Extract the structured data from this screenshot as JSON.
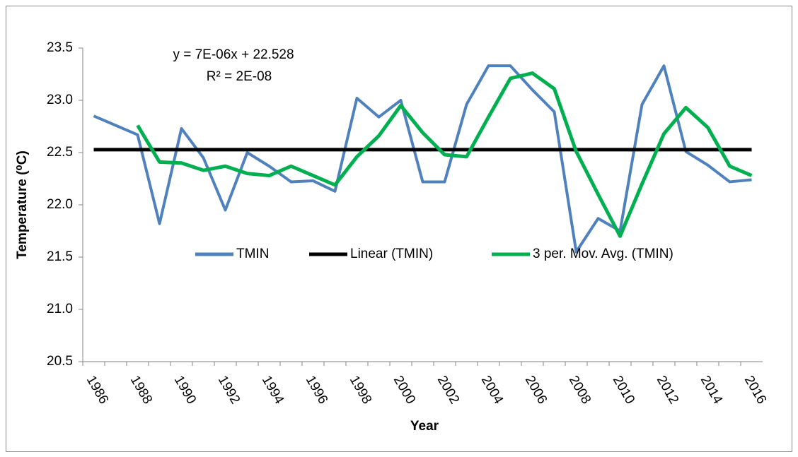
{
  "chart_data": {
    "type": "line",
    "x_label": "Year",
    "y_label": "Temperature (⁰C)",
    "annotations": [
      "y = 7E-06x + 22.528",
      "R² = 2E-08"
    ],
    "categories": [
      "1986",
      null,
      "1988",
      null,
      "1990",
      null,
      "1992",
      null,
      "1994",
      null,
      "1996",
      null,
      "1998",
      null,
      "2000",
      null,
      "2002",
      null,
      "2004",
      null,
      "2006",
      null,
      "2008",
      null,
      "2010",
      null,
      "2012",
      null,
      "2014",
      null,
      "2016"
    ],
    "series": [
      {
        "name": "TMIN",
        "color": "#4f81bd",
        "values": [
          22.85,
          22.76,
          22.67,
          21.82,
          22.73,
          22.45,
          21.95,
          22.5,
          22.37,
          22.22,
          22.23,
          22.13,
          23.02,
          22.84,
          23.0,
          22.22,
          22.22,
          22.96,
          23.33,
          23.33,
          23.1,
          22.89,
          21.55,
          21.87,
          21.75,
          22.96,
          23.33,
          22.51,
          22.38,
          22.22,
          22.24
        ]
      },
      {
        "name": "Linear (TMIN)",
        "color": "#000000",
        "values": [
          22.528,
          22.528,
          22.528,
          22.528,
          22.528,
          22.528,
          22.528,
          22.528,
          22.528,
          22.528,
          22.528,
          22.528,
          22.528,
          22.528,
          22.528,
          22.528,
          22.528,
          22.528,
          22.528,
          22.528,
          22.528,
          22.528,
          22.528,
          22.528,
          22.528,
          22.528,
          22.528,
          22.528,
          22.528,
          22.528,
          22.528
        ]
      },
      {
        "name": "3 per. Mov. Avg. (TMIN)",
        "color": "#00b050",
        "values": [
          null,
          null,
          22.76,
          22.41,
          22.4,
          22.33,
          22.37,
          22.3,
          22.28,
          22.37,
          22.28,
          22.19,
          22.46,
          22.66,
          22.95,
          22.69,
          22.48,
          22.46,
          22.84,
          23.21,
          23.26,
          23.11,
          22.51,
          22.1,
          21.7,
          22.2,
          22.68,
          22.93,
          22.74,
          22.37,
          22.28
        ]
      }
    ],
    "ylim": [
      20.5,
      23.5
    ],
    "yticks": [
      20.5,
      {
        "value": 21.0,
        "label": "21.0"
      },
      21.5,
      {
        "value": 22.0,
        "label": "22.0"
      },
      22.5,
      {
        "value": 23.0,
        "label": "23.0"
      },
      23.5
    ],
    "grid": false,
    "legend": "center"
  }
}
